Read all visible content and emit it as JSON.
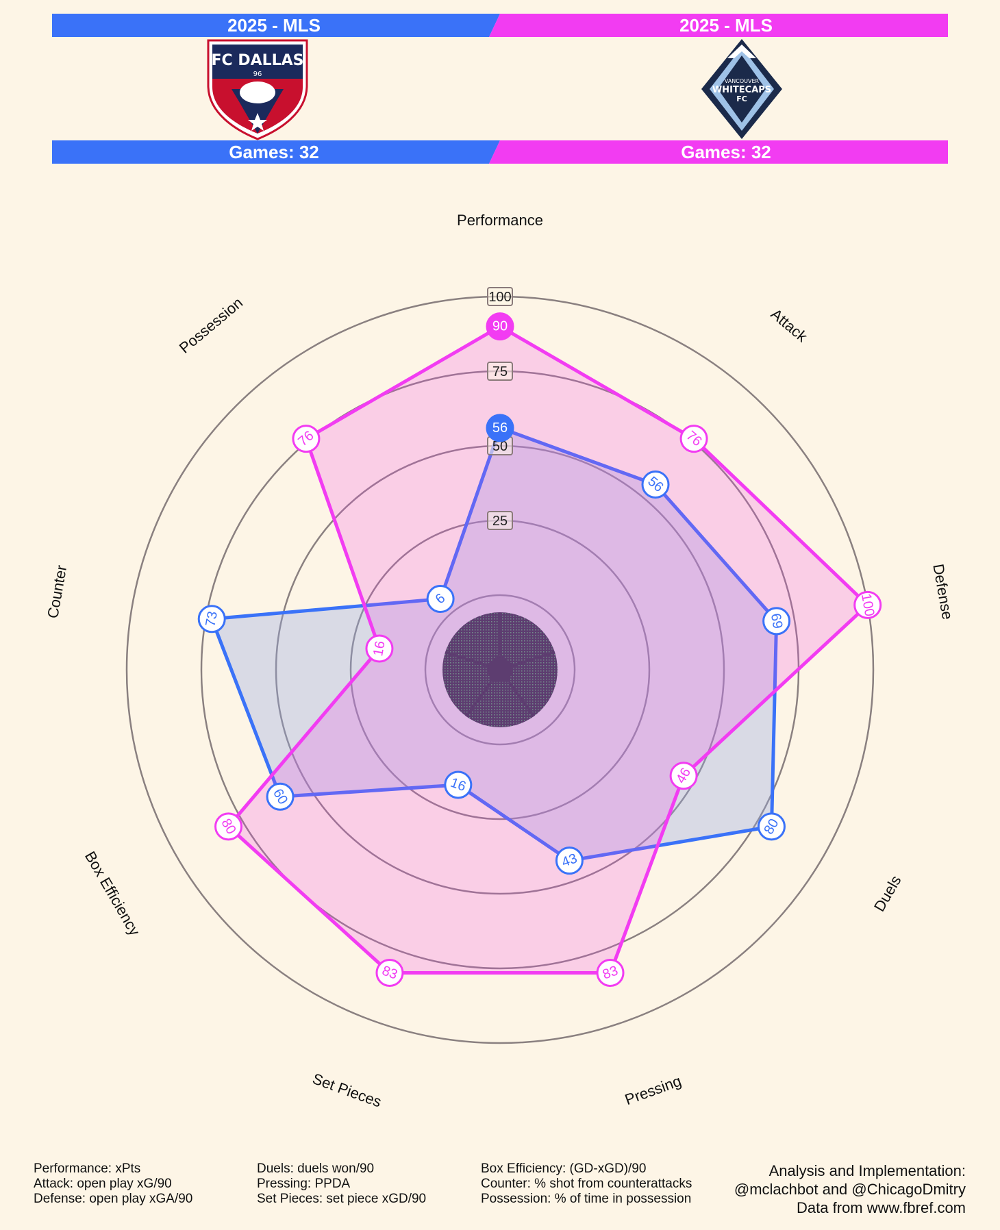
{
  "header": {
    "left": {
      "season": "2025 - MLS",
      "games": "Games: 32",
      "logo_text": "FC DALLAS",
      "logo_sub": "96",
      "color": "#3a72f8"
    },
    "right": {
      "season": "2025 - MLS",
      "games": "Games: 32",
      "logo_text_1": "VANCOUVER",
      "logo_text_2": "WHITECAPS",
      "logo_text_3": "FC",
      "color": "#f23cf2"
    }
  },
  "chart_data": {
    "type": "radar",
    "axes": [
      "Performance",
      "Attack",
      "Defense",
      "Duels",
      "Pressing",
      "Set Pieces",
      "Box Efficiency",
      "Counter",
      "Possession"
    ],
    "range": [
      0,
      100
    ],
    "ring_labels": [
      "25",
      "50",
      "75",
      "100"
    ],
    "ring_values": [
      25,
      50,
      75,
      100
    ],
    "series": [
      {
        "name": "FC Dallas",
        "color": "#3a72f8",
        "values": [
          56,
          56,
          69,
          80,
          43,
          16,
          60,
          73,
          6
        ]
      },
      {
        "name": "Vancouver Whitecaps FC",
        "color": "#f23cf2",
        "values": [
          90,
          76,
          100,
          46,
          83,
          83,
          80,
          16,
          76
        ]
      }
    ]
  },
  "footer": {
    "col1": [
      "Performance: xPts",
      "Attack: open play xG/90",
      "Defense: open play xGA/90"
    ],
    "col2": [
      "Duels: duels won/90",
      "Pressing: PPDA",
      "Set Pieces: set piece xGD/90"
    ],
    "col3": [
      "Box Efficiency: (GD-xGD)/90",
      "Counter: % shot from counterattacks",
      "Possession: % of time in possession"
    ],
    "credits": [
      "Analysis and Implementation:",
      "@mclachbot and @ChicagoDmitry",
      "Data from www.fbref.com"
    ]
  }
}
